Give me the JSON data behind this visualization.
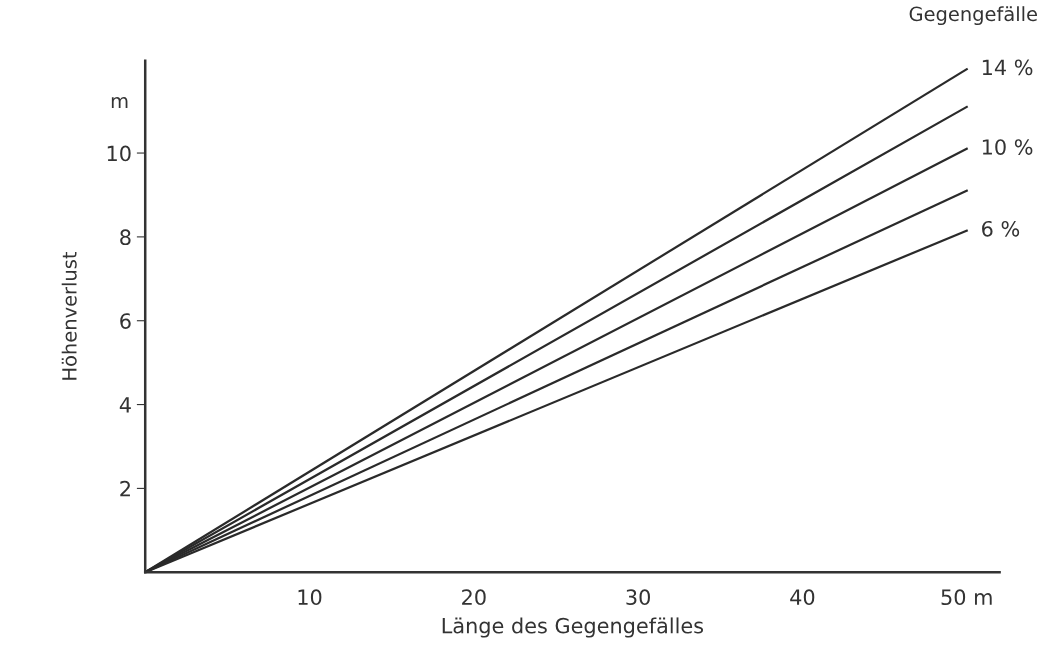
{
  "chart_data": {
    "type": "line",
    "xlabel": "Länge des Gegengefälles",
    "ylabel": "Höhenverlust",
    "legend_title": "Gegengefälle",
    "annotations": [
      "m"
    ],
    "x": [
      0,
      50
    ],
    "series": [
      {
        "name": "14 %",
        "color": "#2a2a2a",
        "values": [
          0,
          12.0
        ]
      },
      {
        "color": "#2a2a2a",
        "values": [
          0,
          11.1
        ]
      },
      {
        "name": "10 %",
        "color": "#2a2a2a",
        "values": [
          0,
          10.1
        ]
      },
      {
        "color": "#2a2a2a",
        "values": [
          0,
          9.1
        ]
      },
      {
        "name": "6 %",
        "color": "#2a2a2a",
        "values": [
          0,
          8.15
        ]
      }
    ],
    "xlim": [
      0,
      52
    ],
    "ylim": [
      0,
      12.2
    ],
    "xticks": [
      10,
      20,
      30,
      40,
      {
        "value": 50,
        "label": "50 m"
      }
    ],
    "yticks": [
      2,
      4,
      6,
      8,
      10
    ],
    "grid": false,
    "legend": false,
    "marker": "none",
    "line_style": "solid"
  }
}
